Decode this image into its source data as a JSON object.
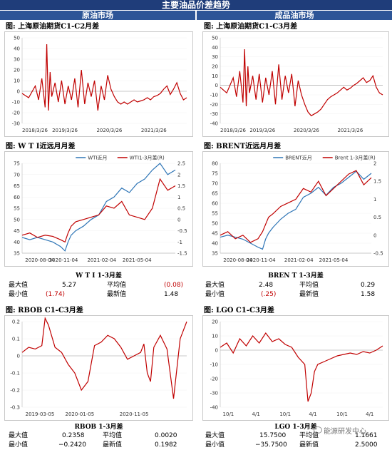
{
  "banner": "主要油品价差趋势",
  "left_header": "原油市场",
  "right_header": "成品油市场",
  "panels": {
    "sc_title": "图: 上海原油期货C1-C2月差",
    "sc3_title": "图: 上海原油期货C1-C3月差",
    "wti_title": "图: W T I近远月月差",
    "brent_title": "图: BRENT近远月月差",
    "rbob_title": "图: RBOB C1-C3月差",
    "lgo_title": "图: LGO C1-C3月差"
  },
  "stats": {
    "wti": {
      "title": "W T I 1-3月差",
      "max_label": "最大值",
      "max": "5.27",
      "mean_label": "平均值",
      "mean": "(0.08)",
      "min_label": "最小值",
      "min": "(1.74)",
      "latest_label": "最新值",
      "latest": "1.48"
    },
    "brent": {
      "title": "BREN T 1-3月差",
      "max_label": "最大值",
      "max": "2.48",
      "mean_label": "平均值",
      "mean": "0.29",
      "min_label": "最小值",
      "min": "(.25)",
      "latest_label": "最新值",
      "latest": "1.58"
    },
    "rbob": {
      "title": "RBOB 1-3月差",
      "max_label": "最大值",
      "max": "0.2358",
      "mean_label": "平均值",
      "mean": "0.0020",
      "min_label": "最小值",
      "min": "−0.2420",
      "latest_label": "最新值",
      "latest": "0.1982"
    },
    "lgo": {
      "title": "LGO 1-3月差",
      "max_label": "最大值",
      "max": "15.7500",
      "mean_label": "平均值",
      "mean": "1.1661",
      "min_label": "最小值",
      "min": "−35.7500",
      "latest_label": "最新值",
      "latest": "2.5000"
    }
  },
  "watermark": "能源研发中心",
  "colors": {
    "red": "#c00000",
    "blue": "#2e75b6",
    "banner": "#1f3d7a",
    "subhead": "#2d5597"
  },
  "chart_data": [
    {
      "id": "sc12",
      "type": "line",
      "title": "图: 上海原油期货C1-C2月差",
      "ylim": [
        -30,
        50
      ],
      "yticks": [
        -30,
        -20,
        -10,
        0,
        10,
        20,
        30,
        40,
        50
      ],
      "xlim": [
        0,
        1
      ],
      "xticks": [
        {
          "pos": 0.0,
          "label": "2018/3/26"
        },
        {
          "pos": 0.26,
          "label": "2019/3/26"
        },
        {
          "pos": 0.53,
          "label": "2020/3/26"
        },
        {
          "pos": 0.8,
          "label": "2021/3/26"
        }
      ],
      "series": [
        {
          "color": "#c00000",
          "x": [
            0,
            0.04,
            0.08,
            0.1,
            0.12,
            0.14,
            0.15,
            0.16,
            0.17,
            0.18,
            0.2,
            0.22,
            0.24,
            0.26,
            0.28,
            0.3,
            0.32,
            0.34,
            0.36,
            0.38,
            0.4,
            0.42,
            0.44,
            0.46,
            0.48,
            0.5,
            0.52,
            0.54,
            0.56,
            0.58,
            0.6,
            0.62,
            0.64,
            0.66,
            0.68,
            0.7,
            0.72,
            0.74,
            0.76,
            0.78,
            0.8,
            0.82,
            0.84,
            0.86,
            0.88,
            0.9,
            0.92,
            0.94,
            0.96,
            0.98,
            1
          ],
          "y": [
            -2,
            -6,
            5,
            -8,
            12,
            -15,
            44,
            -18,
            18,
            -5,
            8,
            -10,
            10,
            -12,
            5,
            -8,
            12,
            -15,
            20,
            -12,
            8,
            -5,
            10,
            -18,
            5,
            -8,
            15,
            2,
            -5,
            -10,
            -12,
            -10,
            -12,
            -10,
            -8,
            -10,
            -9,
            -8,
            -6,
            -8,
            -5,
            -4,
            -2,
            2,
            5,
            -3,
            2,
            8,
            -2,
            -8,
            -6
          ]
        }
      ]
    },
    {
      "id": "sc13",
      "type": "line",
      "title": "图: 上海原油期货C1-C3月差",
      "ylim": [
        -40,
        50
      ],
      "yticks": [
        -40,
        -30,
        -20,
        -10,
        0,
        10,
        20,
        30,
        40,
        50
      ],
      "xlim": [
        0,
        1
      ],
      "xticks": [
        {
          "pos": 0.0,
          "label": "2018/3/26"
        },
        {
          "pos": 0.26,
          "label": "2019/3/26"
        },
        {
          "pos": 0.53,
          "label": "2020/3/26"
        },
        {
          "pos": 0.8,
          "label": "2021/3/26"
        }
      ],
      "series": [
        {
          "color": "#c00000",
          "x": [
            0,
            0.04,
            0.08,
            0.1,
            0.12,
            0.14,
            0.15,
            0.16,
            0.17,
            0.18,
            0.2,
            0.22,
            0.24,
            0.26,
            0.28,
            0.3,
            0.32,
            0.34,
            0.36,
            0.38,
            0.4,
            0.42,
            0.44,
            0.46,
            0.48,
            0.5,
            0.52,
            0.54,
            0.56,
            0.58,
            0.6,
            0.62,
            0.64,
            0.66,
            0.68,
            0.7,
            0.72,
            0.74,
            0.76,
            0.78,
            0.8,
            0.82,
            0.84,
            0.86,
            0.88,
            0.9,
            0.92,
            0.94,
            0.96,
            0.98,
            1
          ],
          "y": [
            -2,
            -8,
            8,
            -12,
            15,
            -18,
            38,
            -22,
            20,
            -8,
            10,
            -15,
            12,
            -18,
            8,
            -10,
            15,
            -20,
            22,
            -15,
            10,
            -8,
            12,
            -22,
            5,
            -10,
            -20,
            -28,
            -32,
            -30,
            -28,
            -25,
            -20,
            -15,
            -12,
            -10,
            -8,
            -5,
            -2,
            -5,
            -3,
            0,
            2,
            5,
            8,
            3,
            5,
            10,
            -2,
            -8,
            -10
          ]
        }
      ]
    },
    {
      "id": "wti",
      "type": "line",
      "title": "图: W T I近远月月差",
      "ylim": [
        35,
        75
      ],
      "yticks": [
        35,
        40,
        45,
        50,
        55,
        60,
        65,
        70,
        75
      ],
      "ylim2": [
        -1.5,
        2.5
      ],
      "yticks2": [
        -1.5,
        -1,
        -0.5,
        0,
        0.5,
        1,
        1.5,
        2,
        2.5
      ],
      "xlim": [
        0,
        1
      ],
      "xticks": [
        {
          "pos": 0.02,
          "label": "2020-08-04"
        },
        {
          "pos": 0.27,
          "label": "2020-11-04"
        },
        {
          "pos": 0.52,
          "label": "2021-02-04"
        },
        {
          "pos": 0.75,
          "label": "2021-05-04"
        }
      ],
      "legend": [
        "WTI近月",
        "WTI1-3月差(R)"
      ],
      "series": [
        {
          "name": "WTI近月",
          "color": "#2e75b6",
          "axis": "left",
          "x": [
            0,
            0.05,
            0.1,
            0.15,
            0.2,
            0.25,
            0.28,
            0.3,
            0.32,
            0.35,
            0.4,
            0.45,
            0.5,
            0.55,
            0.6,
            0.65,
            0.7,
            0.75,
            0.8,
            0.85,
            0.9,
            0.95,
            1
          ],
          "y": [
            42,
            41,
            42,
            41,
            40,
            38,
            36,
            40,
            43,
            45,
            47,
            50,
            52,
            58,
            60,
            64,
            62,
            66,
            68,
            72,
            75,
            70,
            72
          ]
        },
        {
          "name": "WTI1-3月差(R)",
          "color": "#c00000",
          "axis": "right",
          "x": [
            0,
            0.05,
            0.1,
            0.15,
            0.2,
            0.25,
            0.28,
            0.3,
            0.32,
            0.35,
            0.4,
            0.45,
            0.5,
            0.55,
            0.6,
            0.65,
            0.7,
            0.75,
            0.8,
            0.85,
            0.9,
            0.95,
            1
          ],
          "y": [
            -0.7,
            -0.6,
            -0.8,
            -0.7,
            -0.75,
            -0.9,
            -1.0,
            -0.6,
            -0.3,
            -0.1,
            0.0,
            0.1,
            0.2,
            0.6,
            0.5,
            0.8,
            0.2,
            0.1,
            0.0,
            0.5,
            1.8,
            1.3,
            1.5
          ]
        }
      ]
    },
    {
      "id": "brent",
      "type": "line",
      "title": "图: BRENT近远月月差",
      "ylim": [
        35,
        80
      ],
      "yticks": [
        35,
        40,
        45,
        50,
        55,
        60,
        65,
        70,
        75,
        80
      ],
      "ylim2": [
        -0.5,
        2
      ],
      "yticks2": [
        -0.5,
        0,
        0.5,
        1,
        1.5,
        2
      ],
      "xlim": [
        0,
        1
      ],
      "xticks": [
        {
          "pos": 0.02,
          "label": "2020-08-04"
        },
        {
          "pos": 0.27,
          "label": "2020-11-04"
        },
        {
          "pos": 0.52,
          "label": "2021-02-04"
        },
        {
          "pos": 0.75,
          "label": "2021-05-04"
        }
      ],
      "legend": [
        "BRENT近月",
        "Brent 1-3月差(R)"
      ],
      "series": [
        {
          "name": "BRENT近月",
          "color": "#2e75b6",
          "axis": "left",
          "x": [
            0,
            0.05,
            0.1,
            0.15,
            0.2,
            0.25,
            0.28,
            0.3,
            0.32,
            0.35,
            0.4,
            0.45,
            0.5,
            0.55,
            0.6,
            0.65,
            0.7,
            0.75,
            0.8,
            0.85,
            0.9,
            0.95,
            1
          ],
          "y": [
            43,
            44,
            43,
            42,
            40,
            38,
            37,
            42,
            45,
            48,
            52,
            55,
            57,
            63,
            65,
            68,
            64,
            68,
            70,
            73,
            76,
            72,
            75
          ]
        },
        {
          "name": "Brent 1-3月差(R)",
          "color": "#c00000",
          "axis": "right",
          "x": [
            0,
            0.05,
            0.1,
            0.15,
            0.2,
            0.25,
            0.28,
            0.3,
            0.32,
            0.35,
            0.4,
            0.45,
            0.5,
            0.55,
            0.6,
            0.65,
            0.7,
            0.75,
            0.8,
            0.85,
            0.9,
            0.95,
            1
          ],
          "y": [
            0.0,
            0.1,
            -0.1,
            0.0,
            -0.2,
            -0.1,
            0.1,
            0.3,
            0.5,
            0.6,
            0.8,
            0.9,
            1.0,
            1.3,
            1.2,
            1.5,
            1.1,
            1.3,
            1.5,
            1.7,
            1.8,
            1.4,
            1.6
          ]
        }
      ]
    },
    {
      "id": "rbob",
      "type": "line",
      "title": "图: RBOB C1-C3月差",
      "ylim": [
        -0.3,
        0.2
      ],
      "yticks": [
        -0.3,
        -0.2,
        -0.1,
        0,
        0.1,
        0.2
      ],
      "xlim": [
        0,
        1
      ],
      "xticks": [
        {
          "pos": 0.02,
          "label": "2019-03-05"
        },
        {
          "pos": 0.35,
          "label": "2020-01-05"
        },
        {
          "pos": 0.68,
          "label": "2020-11-05"
        }
      ],
      "series": [
        {
          "color": "#c00000",
          "x": [
            0,
            0.04,
            0.08,
            0.12,
            0.14,
            0.16,
            0.2,
            0.24,
            0.28,
            0.32,
            0.36,
            0.4,
            0.44,
            0.48,
            0.52,
            0.56,
            0.6,
            0.64,
            0.68,
            0.72,
            0.74,
            0.76,
            0.78,
            0.8,
            0.84,
            0.88,
            0.92,
            0.96,
            1
          ],
          "y": [
            0.02,
            0.05,
            0.04,
            0.06,
            0.22,
            0.18,
            0.05,
            0.02,
            -0.05,
            -0.1,
            -0.2,
            -0.15,
            0.06,
            0.08,
            0.12,
            0.1,
            0.05,
            -0.02,
            0.0,
            0.02,
            0.07,
            -0.1,
            -0.15,
            0.05,
            0.12,
            0.04,
            -0.25,
            0.1,
            0.2
          ]
        }
      ]
    },
    {
      "id": "lgo",
      "type": "line",
      "title": "图: LGO C1-C3月差",
      "ylim": [
        -40,
        20
      ],
      "yticks": [
        -40,
        -30,
        -20,
        -10,
        0,
        10,
        20
      ],
      "xlim": [
        0,
        1
      ],
      "xticks": [
        {
          "pos": 0.05,
          "label": "10/1"
        },
        {
          "pos": 0.22,
          "label": "4/1"
        },
        {
          "pos": 0.4,
          "label": "10/1"
        },
        {
          "pos": 0.57,
          "label": "4/1"
        },
        {
          "pos": 0.75,
          "label": "10/1"
        },
        {
          "pos": 0.92,
          "label": "4/1"
        }
      ],
      "series": [
        {
          "color": "#c00000",
          "x": [
            0,
            0.04,
            0.08,
            0.12,
            0.16,
            0.2,
            0.24,
            0.28,
            0.32,
            0.36,
            0.4,
            0.44,
            0.48,
            0.52,
            0.54,
            0.56,
            0.58,
            0.6,
            0.64,
            0.68,
            0.72,
            0.76,
            0.8,
            0.84,
            0.88,
            0.92,
            0.96,
            1
          ],
          "y": [
            2,
            5,
            -2,
            8,
            3,
            10,
            5,
            12,
            6,
            8,
            4,
            2,
            -5,
            -10,
            -36,
            -30,
            -15,
            -10,
            -8,
            -6,
            -4,
            -3,
            -2,
            -3,
            -1,
            -2,
            0,
            3
          ]
        }
      ]
    }
  ]
}
